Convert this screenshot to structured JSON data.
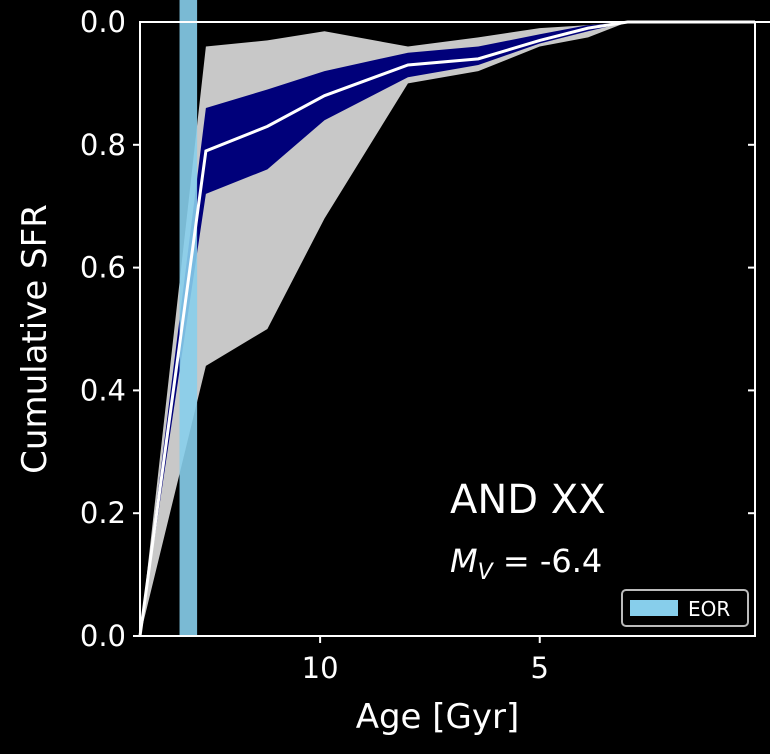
{
  "chart_data": [
    {
      "type": "line",
      "xlabel": "Age [Gyr]",
      "ylabel": "Cumulative SFR",
      "xlim": [
        14.1,
        0.1
      ],
      "xticks": [
        10,
        5
      ],
      "ylim": [
        0,
        1
      ],
      "yticks": [
        {
          "value": 0,
          "label": "0.0"
        },
        0.2,
        0.4,
        0.6,
        0.8
      ],
      "x": [
        14.1,
        12.6,
        11.2,
        9.9,
        8.0,
        6.4,
        5.0,
        3.9,
        3.0,
        0.1
      ],
      "median": {
        "color": "#ffffff",
        "values": [
          0,
          0.79,
          0.83,
          0.88,
          0.93,
          0.94,
          0.97,
          0.99,
          1.0,
          1.0
        ]
      },
      "bands": [
        {
          "color": "#c8c8c8",
          "lower": [
            0,
            0.44,
            0.5,
            0.68,
            0.9,
            0.92,
            0.96,
            0.975,
            1.0,
            1.0
          ],
          "upper": [
            0,
            0.96,
            0.97,
            0.985,
            0.96,
            0.975,
            0.99,
            0.995,
            1.0,
            1.0
          ]
        },
        {
          "color": "#00007a",
          "lower": [
            0,
            0.72,
            0.76,
            0.84,
            0.91,
            0.93,
            0.965,
            0.985,
            1.0,
            1.0
          ],
          "upper": [
            0,
            0.86,
            0.89,
            0.92,
            0.95,
            0.96,
            0.98,
            0.995,
            1.0,
            1.0
          ]
        }
      ],
      "span": {
        "name": "EOR",
        "color": "#87ceeb",
        "x": [
          13.2,
          12.8
        ]
      },
      "annotations": {
        "title": "AND XX",
        "symbol": "M",
        "subscript": "V",
        "text": " = -6.4"
      }
    },
    {
      "type": "line",
      "ylim": [
        0,
        1
      ],
      "yticks": [
        {
          "value": 0,
          "label": "0.0"
        }
      ]
    }
  ]
}
